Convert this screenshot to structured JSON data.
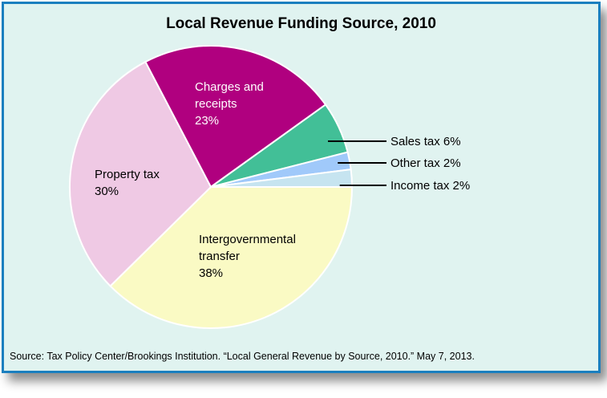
{
  "chart_data": {
    "type": "pie",
    "title": "Local Revenue Funding Source, 2010",
    "slices": [
      {
        "label": "Intergovernmental transfer",
        "lines": [
          "Intergovernmental",
          "transfer",
          "38%"
        ],
        "value": 38,
        "color": "#fafac4",
        "label_color": "#000000",
        "placement": "inside"
      },
      {
        "label": "Property tax",
        "lines": [
          "Property tax",
          "30%"
        ],
        "value": 30,
        "color": "#efc9e4",
        "label_color": "#000000",
        "placement": "inside"
      },
      {
        "label": "Charges and receipts",
        "lines": [
          "Charges and",
          "receipts",
          "23%"
        ],
        "value": 23,
        "color": "#b0007f",
        "label_color": "#ffffff",
        "placement": "inside"
      },
      {
        "label": "Sales tax",
        "lines": [
          "Sales tax 6%"
        ],
        "value": 6,
        "color": "#42bf97",
        "label_color": "#000000",
        "placement": "outside"
      },
      {
        "label": "Other tax",
        "lines": [
          "Other tax 2%"
        ],
        "value": 2,
        "color": "#a0c9fa",
        "label_color": "#000000",
        "placement": "outside"
      },
      {
        "label": "Income tax",
        "lines": [
          "Income tax 2%"
        ],
        "value": 2,
        "color": "#c6e4f0",
        "label_color": "#000000",
        "placement": "outside"
      }
    ],
    "source": "Source: Tax Policy Center/Brookings Institution. “Local General Revenue by Source, 2010.” May 7, 2013."
  }
}
